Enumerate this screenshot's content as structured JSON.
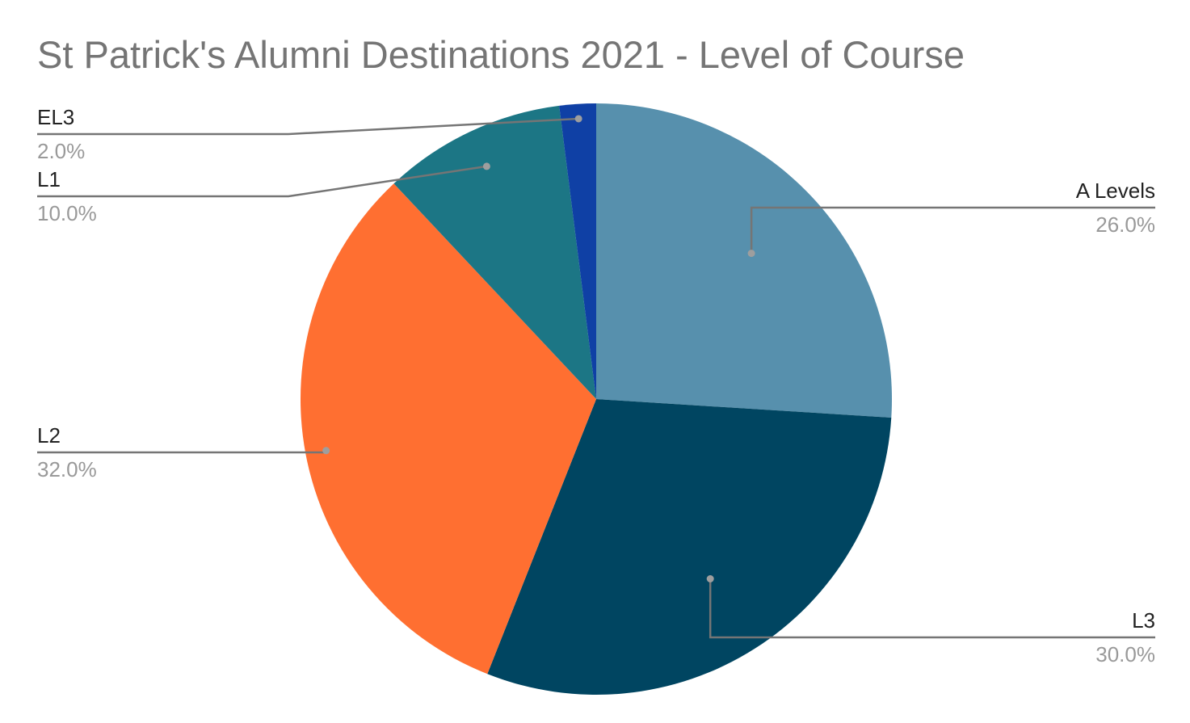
{
  "chart_data": {
    "type": "pie",
    "title": "St Patrick's Alumni Destinations 2021 - Level of Course",
    "legend": "labels",
    "slices": [
      {
        "label": "A Levels",
        "value": 26.0,
        "percent_label": "26.0%",
        "color": "#5790ad"
      },
      {
        "label": "L3",
        "value": 30.0,
        "percent_label": "30.0%",
        "color": "#004561"
      },
      {
        "label": "L2",
        "value": 32.0,
        "percent_label": "32.0%",
        "color": "#ff6f31"
      },
      {
        "label": "L1",
        "value": 10.0,
        "percent_label": "10.0%",
        "color": "#1c7685"
      },
      {
        "label": "EL3",
        "value": 2.0,
        "percent_label": "2.0%",
        "color": "#0f40a5"
      }
    ]
  }
}
